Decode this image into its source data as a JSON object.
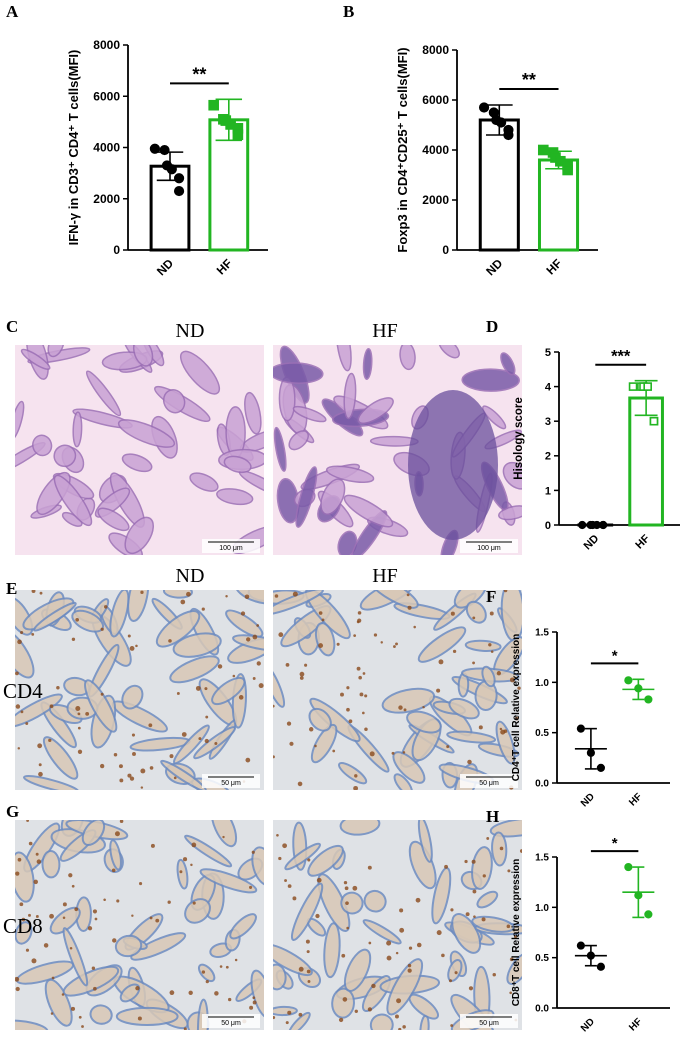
{
  "chart_data": [
    {
      "type": "bar",
      "ylabel": "IFN-γ in CD3⁺ CD4⁺ T cells(MFI)",
      "categories": [
        "ND",
        "HF"
      ],
      "values": [
        3270,
        5080
      ],
      "errors": [
        550,
        800
      ],
      "points": [
        [
          3950,
          3900,
          3300,
          3150,
          2800,
          2300
        ],
        [
          5650,
          5100,
          5050,
          4900,
          4750,
          4500
        ]
      ],
      "colors": [
        "#000000",
        "#22b522"
      ],
      "markers": [
        "circle",
        "square"
      ],
      "ylim": [
        0,
        8000
      ],
      "yticks": [
        0,
        2000,
        4000,
        6000,
        8000
      ],
      "significance": "**"
    },
    {
      "type": "bar",
      "ylabel": "Foxp3 in CD4⁺CD25⁺ T cells(MFI)",
      "categories": [
        "ND",
        "HF"
      ],
      "values": [
        5200,
        3600
      ],
      "errors": [
        600,
        350
      ],
      "points": [
        [
          5700,
          5500,
          5200,
          5100,
          4800,
          4600
        ],
        [
          4000,
          3900,
          3700,
          3550,
          3400,
          3200
        ]
      ],
      "colors": [
        "#000000",
        "#22b522"
      ],
      "markers": [
        "circle",
        "square"
      ],
      "ylim": [
        0,
        8000
      ],
      "yticks": [
        0,
        2000,
        4000,
        6000,
        8000
      ],
      "significance": "**"
    },
    {
      "type": "bar",
      "ylabel": "Hisology score",
      "categories": [
        "ND",
        "HF"
      ],
      "values": [
        0,
        3.67
      ],
      "errors": [
        0,
        0.5
      ],
      "points": [
        [
          0,
          0,
          0,
          0,
          0,
          0
        ],
        [
          4,
          4,
          4,
          4,
          3,
          3
        ]
      ],
      "colors": [
        "#000000",
        "#22b522"
      ],
      "markers": [
        "circle",
        "open-square"
      ],
      "ylim": [
        0,
        5
      ],
      "yticks": [
        0,
        1,
        2,
        3,
        4,
        5
      ],
      "significance": "***"
    },
    {
      "type": "dot",
      "ylabel": "CD4⁺T cell Relative expression",
      "categories": [
        "ND",
        "HF"
      ],
      "values": [
        0.34,
        0.93
      ],
      "errors": [
        0.2,
        0.1
      ],
      "points": [
        [
          0.54,
          0.3,
          0.15
        ],
        [
          1.02,
          0.94,
          0.83
        ]
      ],
      "colors": [
        "#000000",
        "#22b522"
      ],
      "markers": [
        "circle",
        "circle"
      ],
      "ylim": [
        0,
        1.5
      ],
      "yticks": [
        {
          "value": 0,
          "label": "0.0"
        },
        0.5,
        {
          "value": 1,
          "label": "1.0"
        },
        1.5
      ],
      "significance": "*"
    },
    {
      "type": "dot",
      "ylabel": "CD8⁺T cell Relative expression",
      "categories": [
        "ND",
        "HF"
      ],
      "values": [
        0.52,
        1.15
      ],
      "errors": [
        0.1,
        0.25
      ],
      "points": [
        [
          0.62,
          0.52,
          0.41
        ],
        [
          1.4,
          1.12,
          0.93
        ]
      ],
      "colors": [
        "#000000",
        "#22b522"
      ],
      "markers": [
        "circle",
        "circle"
      ],
      "ylim": [
        0,
        1.5
      ],
      "yticks": [
        {
          "value": 0,
          "label": "0.0"
        },
        0.5,
        {
          "value": 1,
          "label": "1.0"
        },
        1.5
      ],
      "significance": "*"
    }
  ],
  "figure": {
    "panel_labels": [
      "A",
      "B",
      "C",
      "D",
      "E",
      "F",
      "G",
      "H"
    ],
    "micrographs": [
      {
        "col_labels": [
          "ND",
          "HF"
        ],
        "scale_bars": [
          "100 μm",
          "100 μm"
        ]
      },
      {
        "col_labels": [
          "ND",
          "HF"
        ],
        "row_label": "CD4",
        "scale_bars": [
          "50 μm",
          "50 μm"
        ]
      },
      {
        "row_label": "CD8",
        "scale_bars": [
          "50 μm",
          "50 μm"
        ]
      }
    ]
  }
}
